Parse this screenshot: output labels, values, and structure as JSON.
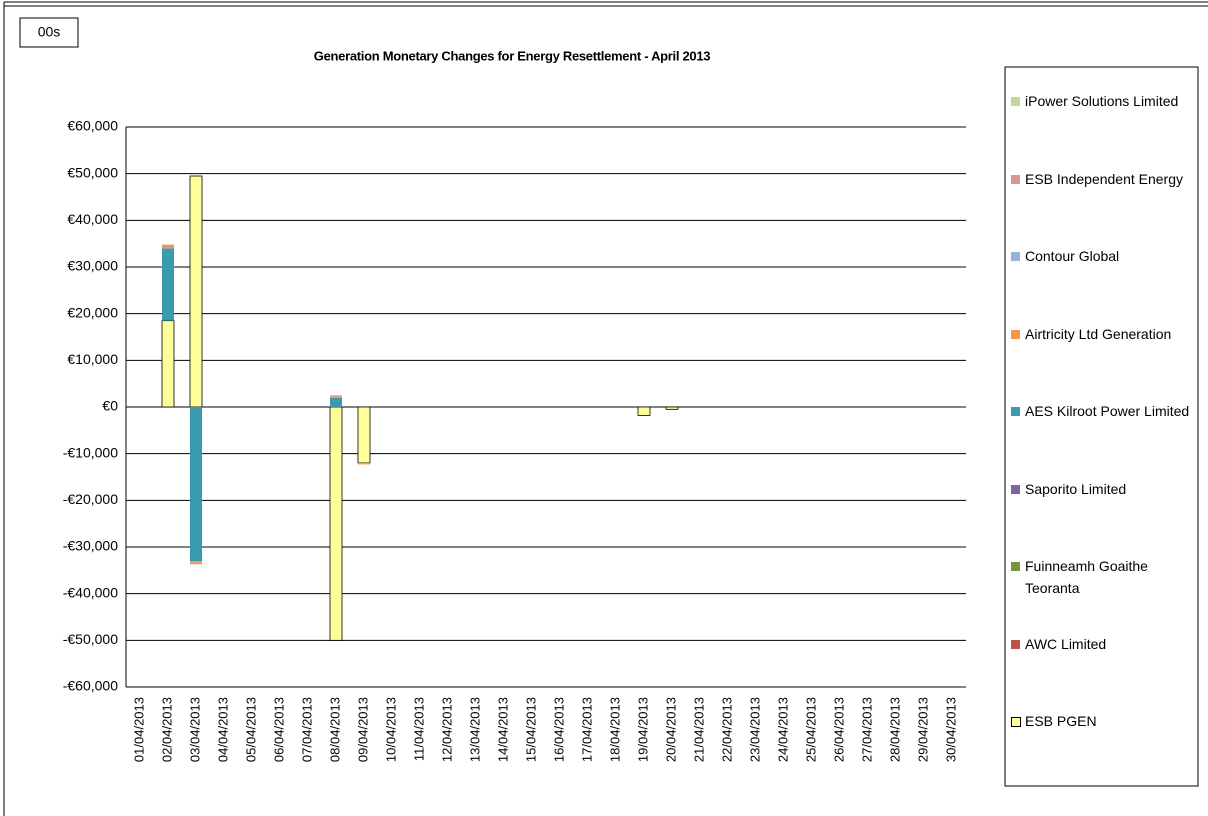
{
  "badge": "00s",
  "chart_data": {
    "type": "bar",
    "stacked": true,
    "title": "Generation Monetary Changes for Energy Resettlement - April 2013",
    "categories": [
      "01/04/2013",
      "02/04/2013",
      "03/04/2013",
      "04/04/2013",
      "05/04/2013",
      "06/04/2013",
      "07/04/2013",
      "08/04/2013",
      "09/04/2013",
      "10/04/2013",
      "11/04/2013",
      "12/04/2013",
      "13/04/2013",
      "14/04/2013",
      "15/04/2013",
      "16/04/2013",
      "17/04/2013",
      "18/04/2013",
      "19/04/2013",
      "20/04/2013",
      "21/04/2013",
      "22/04/2013",
      "23/04/2013",
      "24/04/2013",
      "25/04/2013",
      "26/04/2013",
      "27/04/2013",
      "28/04/2013",
      "29/04/2013",
      "30/04/2013"
    ],
    "ylim": [
      -60000,
      60000
    ],
    "yticks": [
      {
        "value": -60000,
        "label": "-€60,000"
      },
      {
        "value": -50000,
        "label": "-€50,000"
      },
      {
        "value": -40000,
        "label": "-€40,000"
      },
      {
        "value": -30000,
        "label": "-€30,000"
      },
      {
        "value": -20000,
        "label": "-€20,000"
      },
      {
        "value": -10000,
        "label": "-€10,000"
      },
      {
        "value": 0,
        "label": "€0"
      },
      {
        "value": 10000,
        "label": "€10,000"
      },
      {
        "value": 20000,
        "label": "€20,000"
      },
      {
        "value": 30000,
        "label": "€30,000"
      },
      {
        "value": 40000,
        "label": "€40,000"
      },
      {
        "value": 50000,
        "label": "€50,000"
      },
      {
        "value": 60000,
        "label": "€60,000"
      }
    ],
    "grid": true,
    "legend": "right",
    "series": [
      {
        "name": "ESB PGEN",
        "color": "#ffff99",
        "values": [
          0,
          18500,
          49500,
          0,
          0,
          0,
          0,
          -50000,
          -12000,
          0,
          0,
          0,
          0,
          0,
          0,
          0,
          0,
          0,
          -1800,
          -500,
          0,
          0,
          0,
          0,
          0,
          0,
          0,
          0,
          0,
          0
        ]
      },
      {
        "name": "AWC Limited",
        "color": "#c0504d",
        "values": [
          0,
          0,
          0,
          0,
          0,
          0,
          0,
          0,
          0,
          0,
          0,
          0,
          0,
          0,
          0,
          0,
          0,
          0,
          0,
          0,
          0,
          0,
          0,
          0,
          0,
          0,
          0,
          0,
          0,
          0
        ]
      },
      {
        "name": "Fuinneamh Goaithe Teoranta",
        "color": "#77933c",
        "values": [
          0,
          0,
          0,
          0,
          0,
          0,
          0,
          0,
          0,
          0,
          0,
          0,
          0,
          0,
          0,
          0,
          0,
          0,
          0,
          0,
          0,
          0,
          0,
          0,
          0,
          0,
          0,
          0,
          0,
          0
        ]
      },
      {
        "name": "Saporito Limited",
        "color": "#8064a2",
        "values": [
          0,
          0,
          0,
          0,
          0,
          0,
          0,
          0,
          0,
          0,
          0,
          0,
          0,
          0,
          0,
          0,
          0,
          0,
          0,
          0,
          0,
          0,
          0,
          0,
          0,
          0,
          0,
          0,
          0,
          0
        ]
      },
      {
        "name": "AES Kilroot Power Limited",
        "color": "#3a9bb0",
        "values": [
          0,
          15500,
          -33000,
          0,
          0,
          0,
          0,
          2000,
          0,
          0,
          0,
          0,
          0,
          0,
          0,
          0,
          0,
          0,
          0,
          0,
          0,
          0,
          0,
          0,
          0,
          0,
          0,
          0,
          0,
          0
        ]
      },
      {
        "name": "Airtricity Ltd Generation",
        "color": "#f79646",
        "values": [
          0,
          400,
          -400,
          0,
          0,
          0,
          0,
          300,
          -300,
          0,
          0,
          0,
          0,
          0,
          0,
          0,
          0,
          0,
          0,
          0,
          0,
          0,
          0,
          0,
          0,
          0,
          0,
          0,
          0,
          0
        ]
      },
      {
        "name": "Contour Global",
        "color": "#95b3d7",
        "values": [
          0,
          0,
          0,
          0,
          0,
          0,
          0,
          0,
          0,
          0,
          0,
          0,
          0,
          0,
          0,
          0,
          0,
          0,
          0,
          0,
          0,
          0,
          0,
          0,
          0,
          0,
          0,
          0,
          0,
          0
        ]
      },
      {
        "name": "ESB Independent Energy",
        "color": "#d99694",
        "values": [
          0,
          400,
          -300,
          0,
          0,
          0,
          0,
          200,
          0,
          0,
          0,
          0,
          0,
          0,
          0,
          0,
          0,
          0,
          0,
          0,
          0,
          0,
          0,
          0,
          0,
          0,
          0,
          0,
          0,
          0
        ]
      },
      {
        "name": "iPower Solutions Limited",
        "color": "#c3d69b",
        "values": [
          0,
          0,
          0,
          0,
          0,
          0,
          0,
          0,
          0,
          0,
          0,
          0,
          0,
          0,
          0,
          0,
          0,
          0,
          0,
          0,
          0,
          0,
          0,
          0,
          0,
          0,
          0,
          0,
          0,
          0
        ]
      }
    ]
  }
}
